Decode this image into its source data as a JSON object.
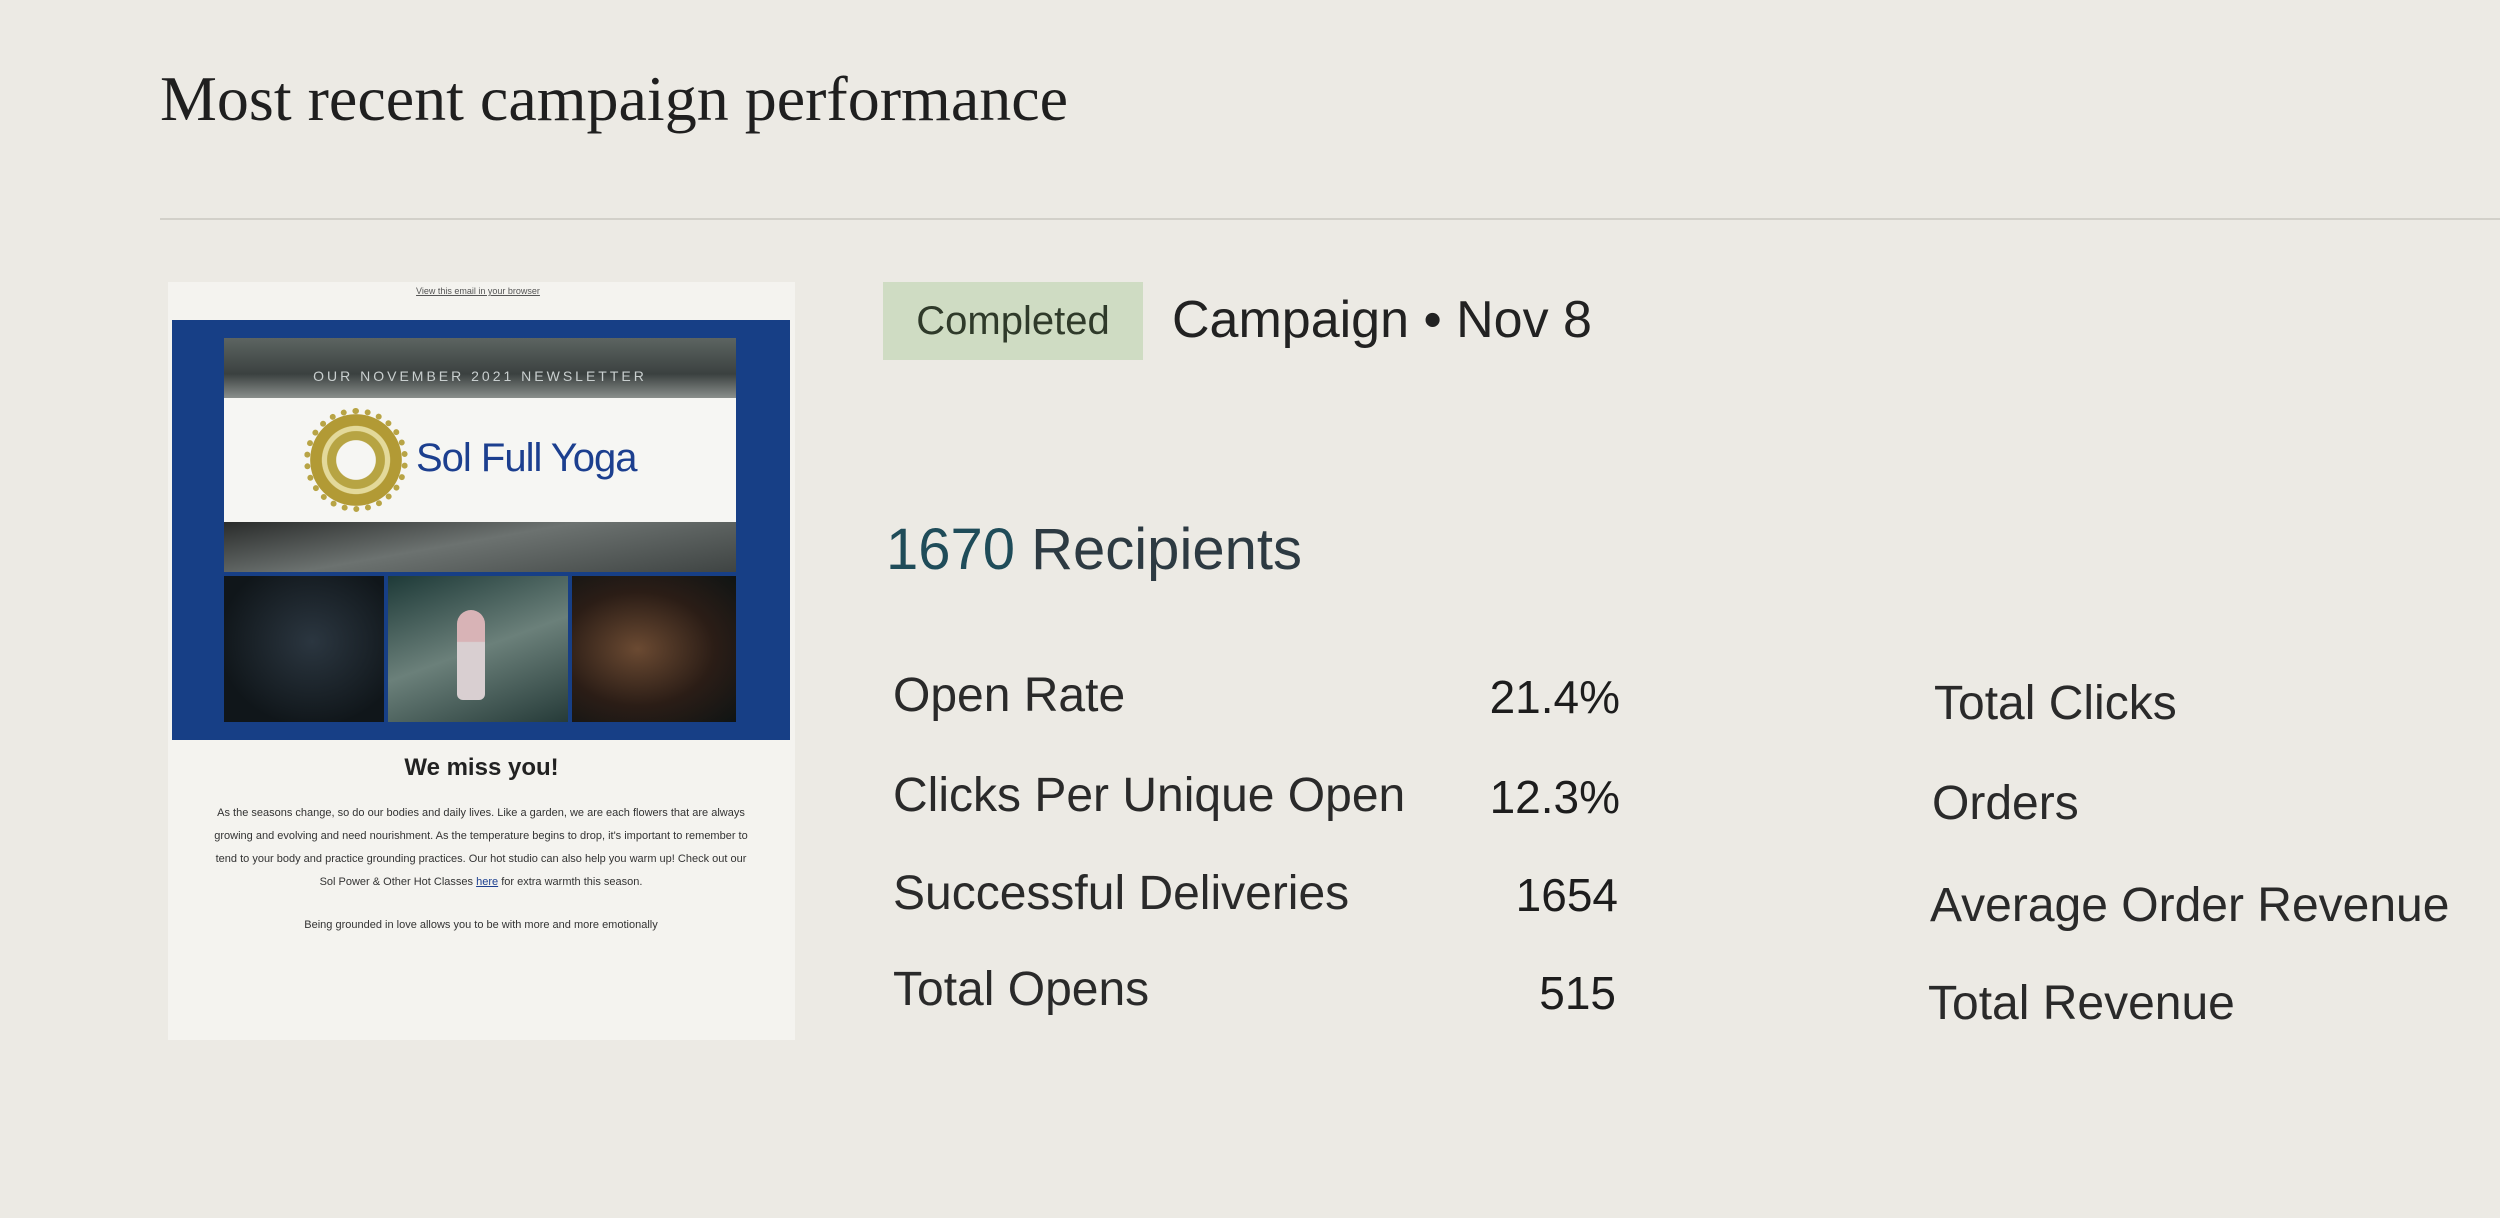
{
  "page": {
    "title": "Most recent campaign performance"
  },
  "preview": {
    "view_link": "View this email in your browser",
    "newsletter_label": "OUR NOVEMBER 2021 NEWSLETTER",
    "logo_text": "Sol Full Yoga",
    "heading": "We miss you!",
    "paragraph_1_before_link": "As the seasons change, so do our bodies and daily lives. Like a garden, we are each flowers that are always growing and evolving and need nourishment. As the temperature begins to drop, it's important to remember to tend to your body and practice grounding practices. Our hot studio can also help you warm up! Check out our Sol Power & Other Hot Classes",
    "paragraph_1_link": "here",
    "paragraph_1_after_link": "for extra warmth this season.",
    "paragraph_2": "Being grounded in love allows you to be with more and more emotionally"
  },
  "campaign": {
    "status": "Completed",
    "meta": "Campaign • Nov 8",
    "recipients_count": "1670",
    "recipients_label": "Recipients"
  },
  "stats": [
    {
      "label": "Open Rate",
      "value": "21.4%"
    },
    {
      "label": "Clicks Per Unique Open",
      "value": "12.3%"
    },
    {
      "label": "Successful Deliveries",
      "value": "1654"
    },
    {
      "label": "Total Opens",
      "value": "515"
    }
  ],
  "stats_right": [
    {
      "label": "Total Clicks"
    },
    {
      "label": "Orders"
    },
    {
      "label": "Average Order Revenue"
    },
    {
      "label": "Total Revenue"
    }
  ]
}
